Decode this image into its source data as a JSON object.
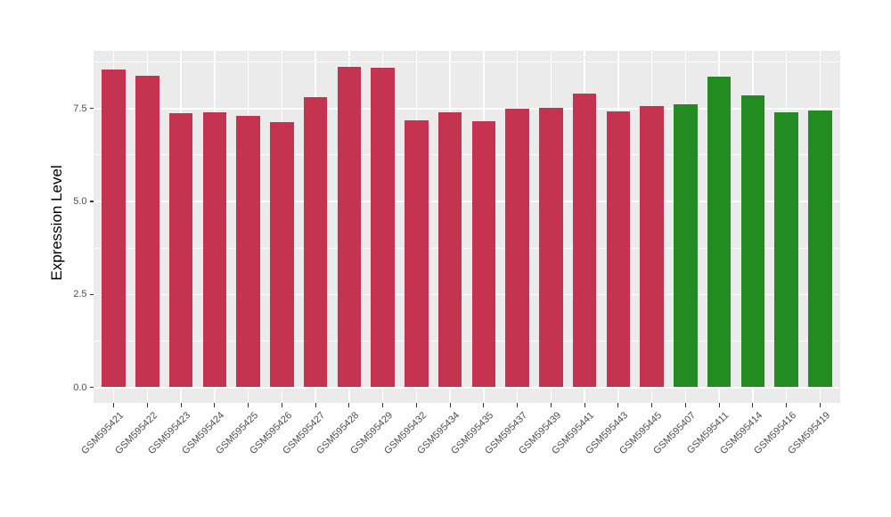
{
  "chart_data": {
    "type": "bar",
    "title": "",
    "xlabel": "",
    "ylabel": "Expression Level",
    "categories": [
      "GSM595421",
      "GSM595422",
      "GSM595423",
      "GSM595424",
      "GSM595425",
      "GSM595426",
      "GSM595427",
      "GSM595428",
      "GSM595429",
      "GSM595432",
      "GSM595434",
      "GSM595435",
      "GSM595437",
      "GSM595439",
      "GSM595441",
      "GSM595443",
      "GSM595445",
      "GSM595407",
      "GSM595411",
      "GSM595414",
      "GSM595416",
      "GSM595419"
    ],
    "values": [
      8.53,
      8.37,
      7.36,
      7.39,
      7.28,
      7.12,
      7.78,
      8.6,
      8.58,
      7.17,
      7.38,
      7.14,
      7.47,
      7.5,
      7.89,
      7.4,
      7.55,
      7.6,
      8.35,
      7.83,
      7.38,
      7.42
    ],
    "bar_color_keys": [
      "crimson",
      "crimson",
      "crimson",
      "crimson",
      "crimson",
      "crimson",
      "crimson",
      "crimson",
      "crimson",
      "crimson",
      "crimson",
      "crimson",
      "crimson",
      "crimson",
      "crimson",
      "crimson",
      "crimson",
      "green",
      "green",
      "green",
      "green",
      "green"
    ],
    "palette": {
      "crimson": "#C43350",
      "green": "#228B22"
    },
    "y_axis": {
      "tick_labels": [
        "0.0",
        "2.5",
        "5.0",
        "7.5"
      ],
      "tick_values": [
        0,
        2.5,
        5.0,
        7.5
      ],
      "minor_values": [
        1.25,
        3.75,
        6.25,
        8.75
      ]
    },
    "ylim": [
      0,
      9.0
    ],
    "grid": "on",
    "legend": "none",
    "panel_background": "#EBEBEB",
    "gridline_color": "#FFFFFF",
    "tick_color": "#333333",
    "axis_text_color": "#4D4D4D"
  }
}
